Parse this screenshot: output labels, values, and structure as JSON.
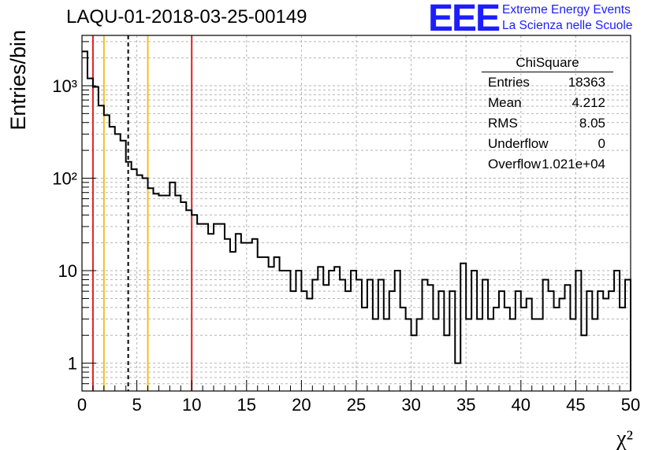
{
  "header": {
    "title": "LAQU-01-2018-03-25-00149",
    "logo": "EEE",
    "logo_line1": "Extreme Energy Events",
    "logo_line2": "La Scienza nelle Scuole"
  },
  "stats": {
    "title": "ChiSquare",
    "rows": [
      {
        "label": "Entries",
        "value": "18363"
      },
      {
        "label": "Mean",
        "value": "4.212"
      },
      {
        "label": "RMS",
        "value": "8.05"
      },
      {
        "label": "Underflow",
        "value": "0"
      },
      {
        "label": "Overflow",
        "value": "1.021e+04"
      }
    ]
  },
  "chart_data": {
    "type": "histogram",
    "title": "LAQU-01-2018-03-25-00149",
    "xlabel": "χ²",
    "ylabel": "Entries/bin",
    "y_scale": "log",
    "xlim": [
      0,
      50
    ],
    "ylim": [
      0.5,
      3500
    ],
    "grid": true,
    "bin_width": 0.5,
    "x_ticks": [
      "0",
      "5",
      "10",
      "15",
      "20",
      "25",
      "30",
      "35",
      "40",
      "45",
      "50"
    ],
    "y_ticks": [
      {
        "value": 1,
        "label": "1"
      },
      {
        "value": 10,
        "label": "10"
      },
      {
        "value": 100,
        "label": "10²"
      },
      {
        "value": 1000,
        "label": "10³"
      }
    ],
    "bin_counts": [
      2350,
      1200,
      970,
      610,
      480,
      360,
      300,
      255,
      150,
      125,
      108,
      100,
      78,
      68,
      65,
      65,
      90,
      65,
      55,
      45,
      40,
      32,
      32,
      25,
      32,
      32,
      22,
      16,
      25,
      20,
      20,
      22,
      14,
      14,
      11,
      14,
      10,
      10,
      6,
      10,
      6,
      5,
      8,
      11,
      7,
      10,
      11,
      8,
      6,
      10,
      8,
      4,
      8,
      3,
      8,
      3,
      6,
      10,
      4,
      3,
      2,
      3,
      8,
      7,
      3,
      6,
      2,
      6,
      1,
      12,
      3,
      10,
      3,
      8,
      3,
      4,
      6,
      4,
      3,
      6,
      4,
      5,
      3,
      3,
      8,
      6,
      4,
      5,
      7,
      3,
      10,
      2,
      6,
      3,
      6,
      5,
      6,
      10,
      4,
      8
    ],
    "reference_lines": [
      {
        "x": 1,
        "color": "#dd2222",
        "style": "solid"
      },
      {
        "x": 2,
        "color": "#f0c020",
        "style": "solid"
      },
      {
        "x": 4.212,
        "color": "#000000",
        "style": "dashed"
      },
      {
        "x": 6,
        "color": "#f0c020",
        "style": "solid"
      },
      {
        "x": 10,
        "color": "#dd2222",
        "style": "solid"
      }
    ]
  }
}
